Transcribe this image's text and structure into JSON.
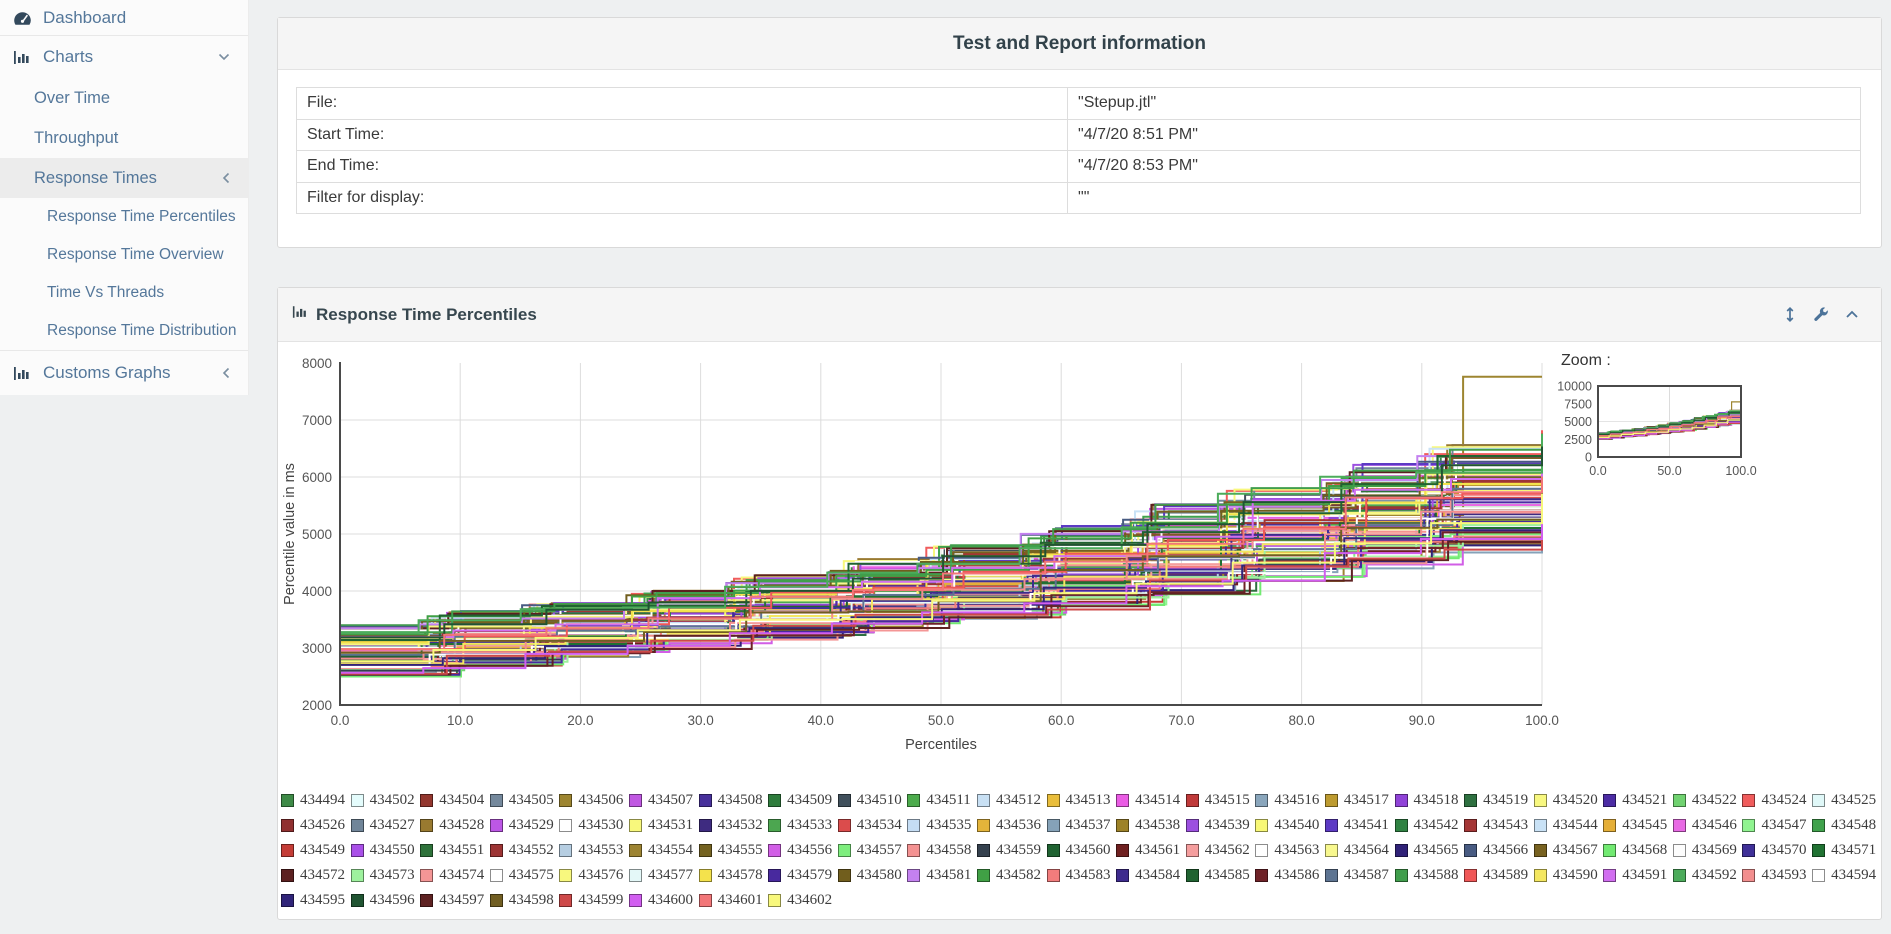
{
  "sidebar": {
    "items": [
      {
        "label": "Dashboard"
      },
      {
        "label": "Charts"
      },
      {
        "label": "Over Time"
      },
      {
        "label": "Throughput"
      },
      {
        "label": "Response Times"
      },
      {
        "label": "Response Time Percentiles"
      },
      {
        "label": "Response Time Overview"
      },
      {
        "label": "Time Vs Threads"
      },
      {
        "label": "Response Time Distribution"
      },
      {
        "label": "Customs Graphs"
      }
    ]
  },
  "info_panel": {
    "title": "Test and Report information",
    "rows": [
      {
        "label": "File:",
        "value": "\"Stepup.jtl\""
      },
      {
        "label": "Start Time:",
        "value": "\"4/7/20 8:51 PM\""
      },
      {
        "label": "End Time:",
        "value": "\"4/7/20 8:53 PM\""
      },
      {
        "label": "Filter for display:",
        "value": "\"\""
      }
    ]
  },
  "chart_panel": {
    "title": "Response Time Percentiles",
    "zoom_label": "Zoom :"
  },
  "chart_data": {
    "type": "line",
    "title": "Response Time Percentiles",
    "xlabel": "Percentiles",
    "ylabel": "Percentile value in ms",
    "xlim": [
      0,
      100
    ],
    "ylim": [
      2000,
      8000
    ],
    "x_ticks": [
      0,
      10,
      20,
      30,
      40,
      50,
      60,
      70,
      80,
      90,
      100
    ],
    "x_tick_labels": [
      "0.0",
      "10.0",
      "20.0",
      "30.0",
      "40.0",
      "50.0",
      "60.0",
      "70.0",
      "80.0",
      "90.0",
      "100.0"
    ],
    "y_ticks": [
      2000,
      3000,
      4000,
      5000,
      6000,
      7000,
      8000
    ],
    "grid": true,
    "legend_position": "bottom",
    "percentiles": [
      0,
      10,
      20,
      30,
      40,
      50,
      60,
      70,
      80,
      90,
      100
    ],
    "band_min": [
      2500,
      2680,
      2850,
      3080,
      3280,
      3480,
      3700,
      3980,
      4280,
      4620,
      5180
    ],
    "band_max": [
      3400,
      3680,
      3820,
      4120,
      4460,
      4800,
      5180,
      5620,
      5980,
      6520,
      6820
    ],
    "step_breakpoints": [
      0,
      8.5,
      17,
      25.5,
      34,
      42.5,
      50,
      58.5,
      67,
      75,
      83.5,
      91.5,
      100
    ],
    "outlier": {
      "name": "434506",
      "from_x": 88,
      "value": 7760
    },
    "minimap": {
      "ylim": [
        0,
        10000
      ],
      "y_ticks": [
        0,
        2500,
        5000,
        7500,
        10000
      ],
      "x_tick_labels": [
        "0.0",
        "50.0",
        "100.0"
      ]
    },
    "series": [
      [
        "434494",
        "#3e8a47"
      ],
      [
        "434502",
        "#e4fcfc"
      ],
      [
        "434504",
        "#93362e"
      ],
      [
        "434505",
        "#74889c"
      ],
      [
        "434506",
        "#9d8530"
      ],
      [
        "434507",
        "#c058e2"
      ],
      [
        "434508",
        "#47309b"
      ],
      [
        "434509",
        "#2e7c3c"
      ],
      [
        "434510",
        "#40505c"
      ],
      [
        "434511",
        "#4cab4c"
      ],
      [
        "434512",
        "#c8e0f4"
      ],
      [
        "434513",
        "#e9bd3a"
      ],
      [
        "434514",
        "#ea5ce4"
      ],
      [
        "434515",
        "#c03a3a"
      ],
      [
        "434516",
        "#8aa6bc"
      ],
      [
        "434517",
        "#bd9b30"
      ],
      [
        "434518",
        "#9043d8"
      ],
      [
        "434519",
        "#2e7040"
      ],
      [
        "434520",
        "#f8f880"
      ],
      [
        "434521",
        "#4c2ca4"
      ],
      [
        "434522",
        "#70d270"
      ],
      [
        "434524",
        "#f05c5c"
      ],
      [
        "434525",
        "#e0f8f8"
      ],
      [
        "434526",
        "#903030"
      ],
      [
        "434527",
        "#708599"
      ],
      [
        "434528",
        "#997a30"
      ],
      [
        "434529",
        "#bd57e6"
      ],
      [
        "434530",
        "#ffffff"
      ],
      [
        "434531",
        "#f8f87c"
      ],
      [
        "434532",
        "#3e2b80"
      ],
      [
        "434533",
        "#4ca650"
      ],
      [
        "434534",
        "#db4c4c"
      ],
      [
        "434535",
        "#c5ddf4"
      ],
      [
        "434536",
        "#e4b43a"
      ],
      [
        "434537",
        "#85a2b8"
      ],
      [
        "434538",
        "#9d8228"
      ],
      [
        "434539",
        "#9c50e0"
      ],
      [
        "434540",
        "#f8f876"
      ],
      [
        "434541",
        "#5c3ac4"
      ],
      [
        "434542",
        "#2f8242"
      ],
      [
        "434543",
        "#a43636"
      ],
      [
        "434544",
        "#c9e2f6"
      ],
      [
        "434545",
        "#e5af38"
      ],
      [
        "434546",
        "#e86ae4"
      ],
      [
        "434547",
        "#90f490"
      ],
      [
        "434548",
        "#40a24c"
      ],
      [
        "434549",
        "#c43c36"
      ],
      [
        "434550",
        "#a950e8"
      ],
      [
        "434551",
        "#2e723a"
      ],
      [
        "434552",
        "#9d3434"
      ],
      [
        "434553",
        "#b6cee2"
      ],
      [
        "434554",
        "#9d8432"
      ],
      [
        "434555",
        "#746220"
      ],
      [
        "434556",
        "#d15ee6"
      ],
      [
        "434557",
        "#7eee7e"
      ],
      [
        "434558",
        "#f49292"
      ],
      [
        "434559",
        "#35414e"
      ],
      [
        "434560",
        "#206332"
      ],
      [
        "434561",
        "#6f2020"
      ],
      [
        "434562",
        "#f59e9e"
      ],
      [
        "434563",
        "#ffffff"
      ],
      [
        "434564",
        "#f8f88e"
      ],
      [
        "434565",
        "#302278"
      ],
      [
        "434566",
        "#485b82"
      ],
      [
        "434567",
        "#786220"
      ],
      [
        "434568",
        "#72ea72"
      ],
      [
        "434569",
        "#fdfdfd"
      ],
      [
        "434570",
        "#3f3098"
      ],
      [
        "434571",
        "#207232"
      ],
      [
        "434572",
        "#5c2020"
      ],
      [
        "434573",
        "#9ef29e"
      ],
      [
        "434574",
        "#f49696"
      ],
      [
        "434575",
        "#ffffff"
      ],
      [
        "434576",
        "#f8f87e"
      ],
      [
        "434577",
        "#e4f8f8"
      ],
      [
        "434578",
        "#f4e24c"
      ],
      [
        "434579",
        "#48299e"
      ],
      [
        "434580",
        "#715e1d"
      ],
      [
        "434581",
        "#c481f0"
      ],
      [
        "434582",
        "#40a045"
      ],
      [
        "434583",
        "#f27c7c"
      ],
      [
        "434584",
        "#3e2b8e"
      ],
      [
        "434585",
        "#206331"
      ],
      [
        "434586",
        "#6f2228"
      ],
      [
        "434587",
        "#5d7492"
      ],
      [
        "434588",
        "#409e4c"
      ],
      [
        "434589",
        "#f05757"
      ],
      [
        "434590",
        "#f4e760"
      ],
      [
        "434591",
        "#d16ef0"
      ],
      [
        "434592",
        "#4cac5b"
      ],
      [
        "434593",
        "#f28e8e"
      ],
      [
        "434594",
        "#ffffff"
      ],
      [
        "434595",
        "#302479"
      ],
      [
        "434596",
        "#205432"
      ],
      [
        "434597",
        "#5e2222"
      ],
      [
        "434598",
        "#715e22"
      ],
      [
        "434599",
        "#ce4949"
      ],
      [
        "434600",
        "#d15ef0"
      ],
      [
        "434601",
        "#f27678"
      ],
      [
        "434602",
        "#f8f87c"
      ]
    ]
  }
}
